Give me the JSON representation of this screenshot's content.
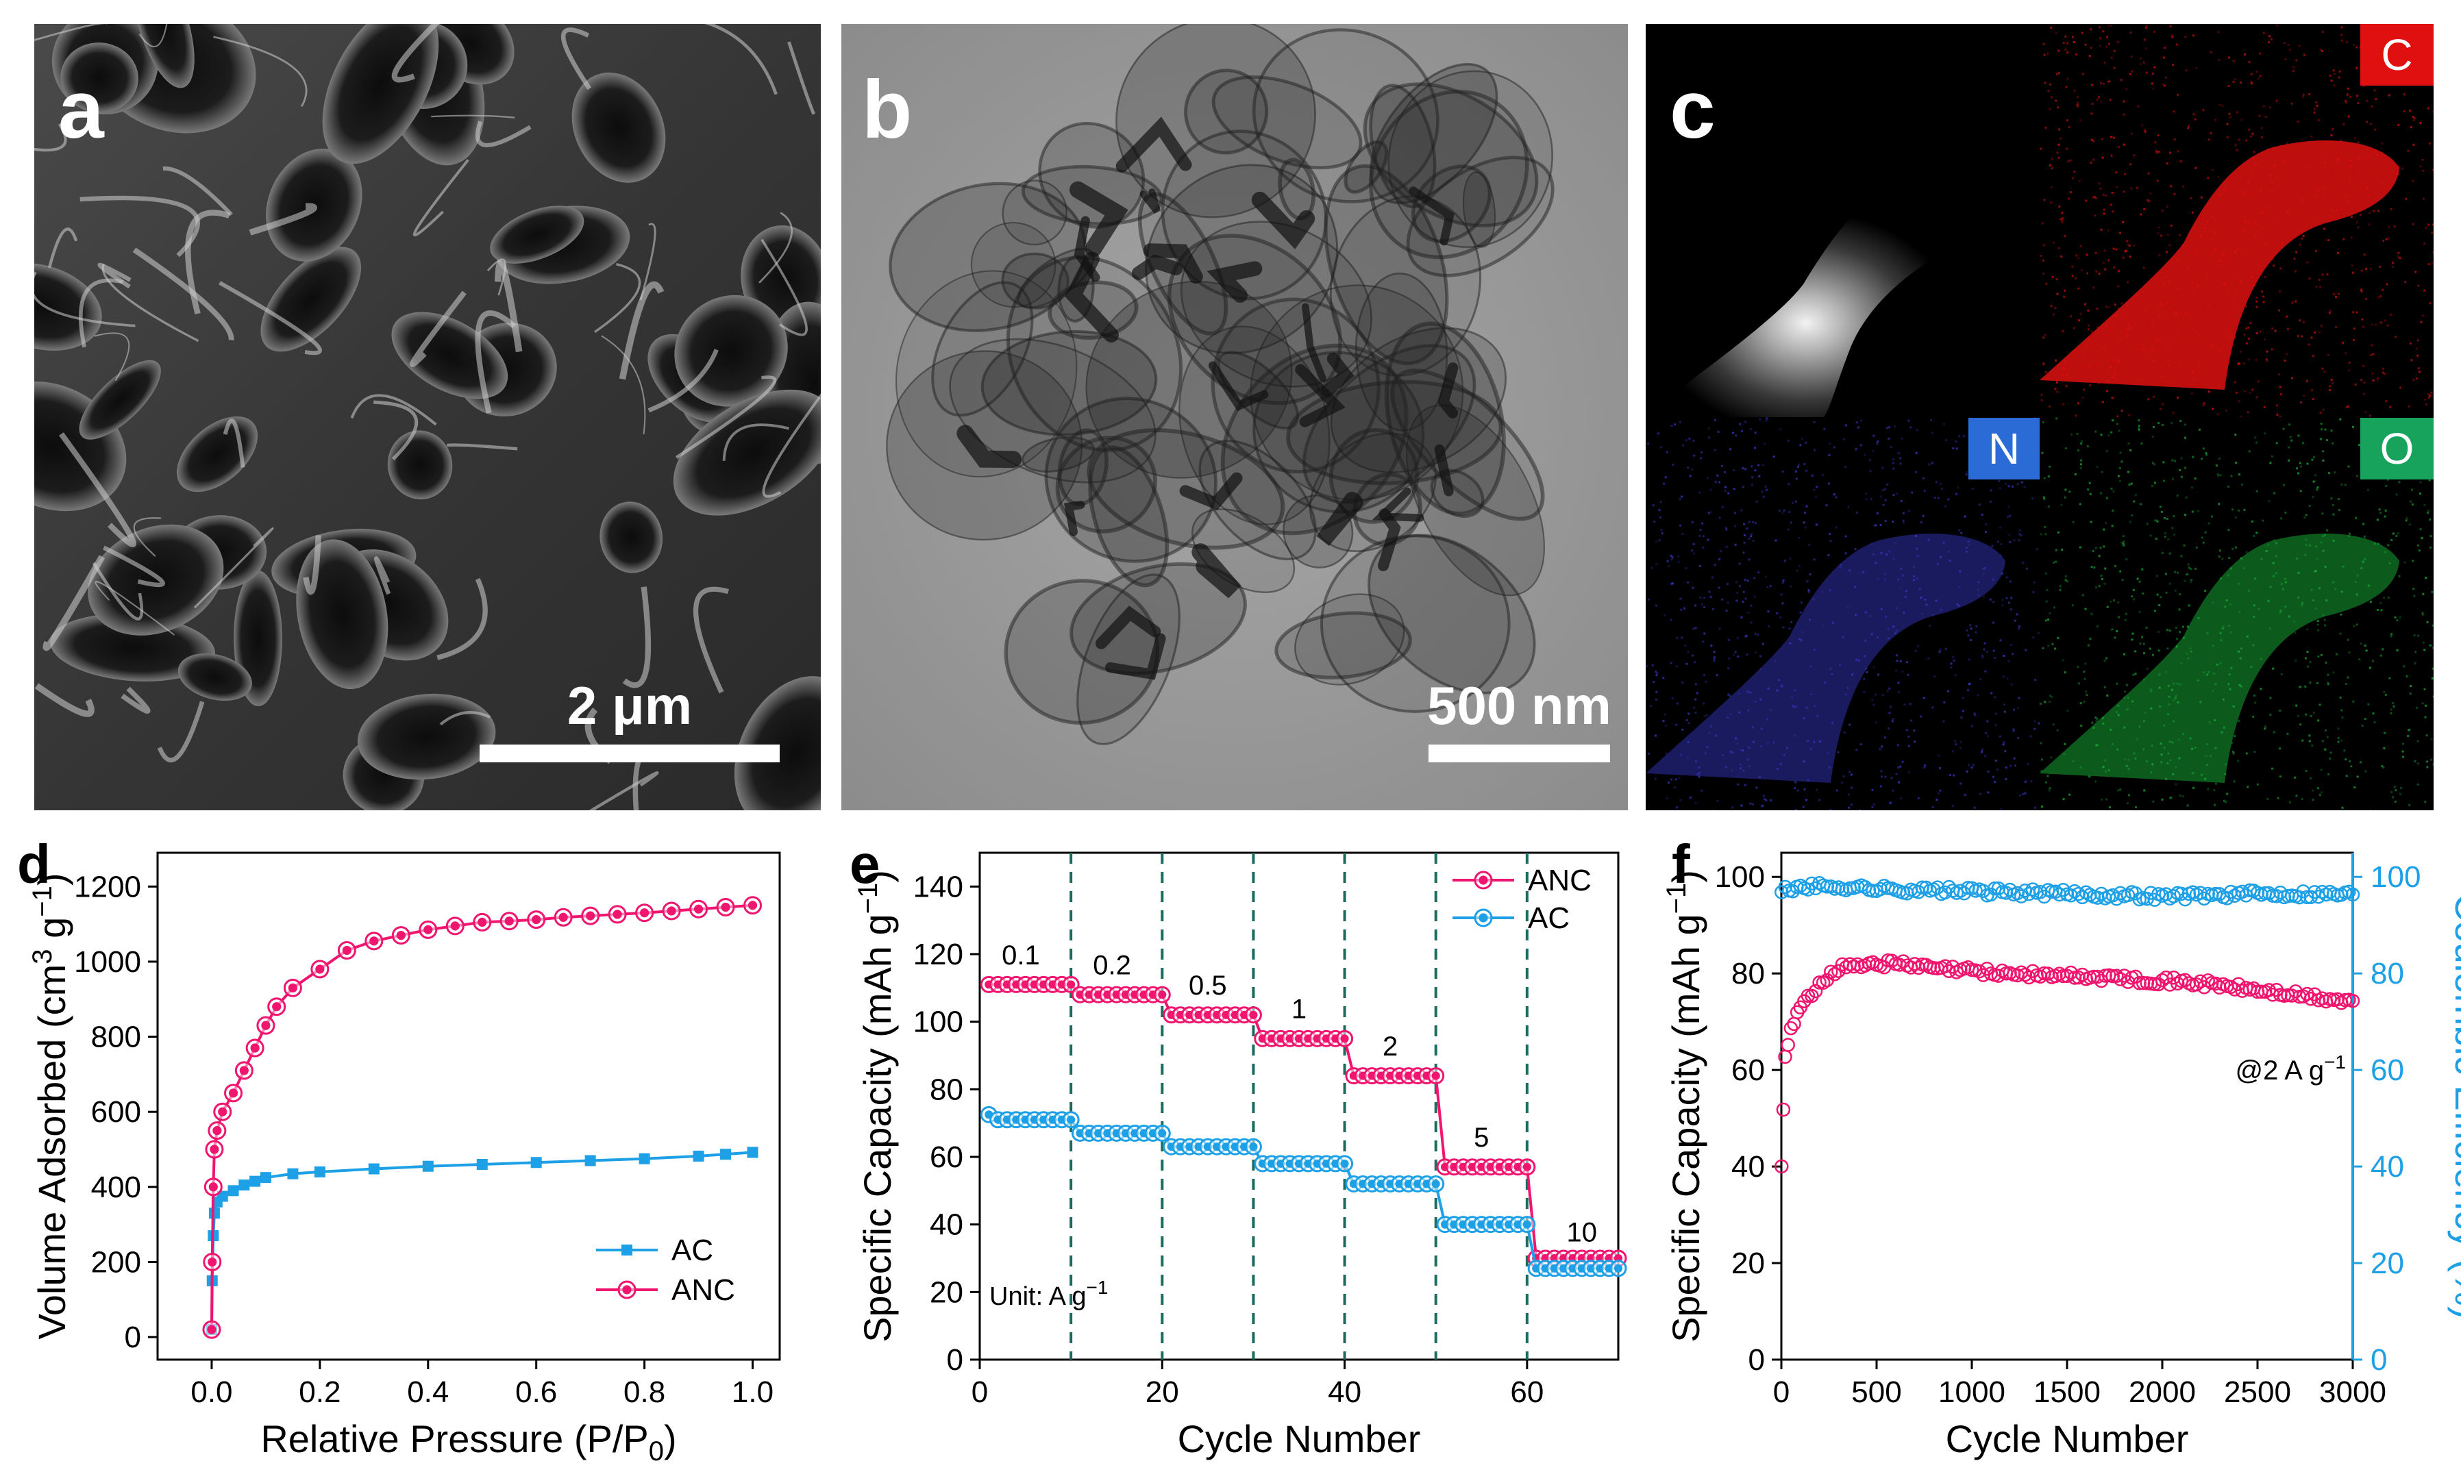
{
  "panels": {
    "a": {
      "letter": "a",
      "scale_label": "2 μm"
    },
    "b": {
      "letter": "b",
      "scale_label": "500 nm"
    },
    "c": {
      "letter": "c",
      "maps": [
        "C",
        "N",
        "O"
      ],
      "map_colors": {
        "C": "#e01010",
        "N": "#2a6bd6",
        "O": "#17a35c"
      }
    }
  },
  "colors": {
    "anc": "#f0156f",
    "ac": "#1ea0e6",
    "axis_right": "#1ea0e6",
    "dashed": "#1b6b5e"
  },
  "chart_data": [
    {
      "panel": "d",
      "type": "scatter",
      "xlabel": "Relative Pressure (P/P0)",
      "ylabel": "Volume Adsorbed (cm3 g−1)",
      "xlim": [
        -0.1,
        1.05
      ],
      "ylim": [
        -60,
        1290
      ],
      "xticks": [
        0.0,
        0.2,
        0.4,
        0.6,
        0.8,
        1.0
      ],
      "yticks": [
        0,
        200,
        400,
        600,
        800,
        1000,
        1200
      ],
      "legend_position": "bottom-right",
      "series": [
        {
          "name": "AC",
          "marker": "square",
          "color": "#1ea0e6",
          "x": [
            0.0,
            0.001,
            0.003,
            0.005,
            0.01,
            0.02,
            0.04,
            0.06,
            0.08,
            0.1,
            0.15,
            0.2,
            0.3,
            0.4,
            0.5,
            0.6,
            0.7,
            0.8,
            0.9,
            0.95,
            1.0
          ],
          "y": [
            20,
            150,
            270,
            330,
            360,
            375,
            390,
            405,
            415,
            425,
            435,
            440,
            448,
            455,
            460,
            465,
            470,
            475,
            482,
            487,
            492
          ]
        },
        {
          "name": "ANC",
          "marker": "circle",
          "color": "#f0156f",
          "x": [
            0.0,
            0.001,
            0.003,
            0.005,
            0.01,
            0.02,
            0.04,
            0.06,
            0.08,
            0.1,
            0.12,
            0.15,
            0.2,
            0.25,
            0.3,
            0.35,
            0.4,
            0.45,
            0.5,
            0.55,
            0.6,
            0.65,
            0.7,
            0.75,
            0.8,
            0.85,
            0.9,
            0.95,
            1.0
          ],
          "y": [
            20,
            200,
            400,
            500,
            550,
            600,
            650,
            710,
            770,
            830,
            880,
            930,
            980,
            1030,
            1055,
            1070,
            1085,
            1095,
            1105,
            1108,
            1112,
            1118,
            1122,
            1126,
            1130,
            1135,
            1140,
            1145,
            1150
          ]
        }
      ]
    },
    {
      "panel": "e",
      "type": "scatter",
      "xlabel": "Cycle Number",
      "ylabel": "Specific Capacity (mAh g−1)",
      "xlim": [
        0,
        70
      ],
      "ylim": [
        0,
        150
      ],
      "xticks": [
        0,
        20,
        40,
        60
      ],
      "yticks": [
        0,
        20,
        40,
        60,
        80,
        100,
        120,
        140
      ],
      "legend_position": "top-right",
      "unit_note": "Unit: A g−1",
      "dashed_lines_x": [
        10,
        20,
        30,
        40,
        50,
        60
      ],
      "rate_labels": [
        {
          "text": "0.1",
          "x": 4.5,
          "y": 117
        },
        {
          "text": "0.2",
          "x": 14.5,
          "y": 114
        },
        {
          "text": "0.5",
          "x": 25,
          "y": 108
        },
        {
          "text": "1",
          "x": 35,
          "y": 101
        },
        {
          "text": "2",
          "x": 45,
          "y": 90
        },
        {
          "text": "5",
          "x": 55,
          "y": 63
        },
        {
          "text": "10",
          "x": 66,
          "y": 35
        }
      ],
      "steps": [
        {
          "start": 1,
          "end": 10,
          "anc": 111,
          "ac": 71
        },
        {
          "start": 11,
          "end": 20,
          "anc": 108,
          "ac": 67
        },
        {
          "start": 21,
          "end": 30,
          "anc": 102,
          "ac": 63
        },
        {
          "start": 31,
          "end": 40,
          "anc": 95,
          "ac": 58
        },
        {
          "start": 41,
          "end": 50,
          "anc": 84,
          "ac": 52
        },
        {
          "start": 51,
          "end": 60,
          "anc": 57,
          "ac": 40
        },
        {
          "start": 61,
          "end": 70,
          "anc": 30,
          "ac": 27
        }
      ],
      "series": [
        {
          "name": "ANC",
          "color": "#f0156f"
        },
        {
          "name": "AC",
          "color": "#1ea0e6"
        }
      ]
    },
    {
      "panel": "f",
      "type": "scatter",
      "xlabel": "Cycle Number",
      "ylabel": "Specific Capacity (mAh g−1)",
      "y2label": "Coulombic Efficiency (%)",
      "xlim": [
        0,
        3000
      ],
      "ylim": [
        0,
        105
      ],
      "y2lim": [
        0,
        105
      ],
      "xticks": [
        0,
        500,
        1000,
        1500,
        2000,
        2500,
        3000
      ],
      "yticks": [
        0,
        20,
        40,
        60,
        80,
        100
      ],
      "y2ticks": [
        0,
        20,
        40,
        60,
        80,
        100
      ],
      "annotation": "@2 A g−1",
      "series": [
        {
          "name": "Specific Capacity",
          "axis": "left",
          "color": "#f0156f",
          "x": [
            1,
            20,
            50,
            100,
            200,
            300,
            400,
            500,
            600,
            800,
            1000,
            1200,
            1500,
            1800,
            2000,
            2200,
            2500,
            2700,
            2900,
            3000
          ],
          "y": [
            40,
            62,
            68,
            73,
            78,
            81,
            82,
            82,
            82,
            81,
            80.5,
            80,
            79.5,
            79,
            78.5,
            78,
            76.5,
            75.5,
            74.5,
            74
          ]
        },
        {
          "name": "Coulombic Efficiency",
          "axis": "right",
          "color": "#1ea0e6",
          "x": [
            1,
            100,
            300,
            500,
            1000,
            1500,
            2000,
            2500,
            3000
          ],
          "y": [
            97,
            98,
            98,
            97.5,
            97,
            96.5,
            96,
            96.5,
            96.5
          ]
        }
      ]
    }
  ]
}
